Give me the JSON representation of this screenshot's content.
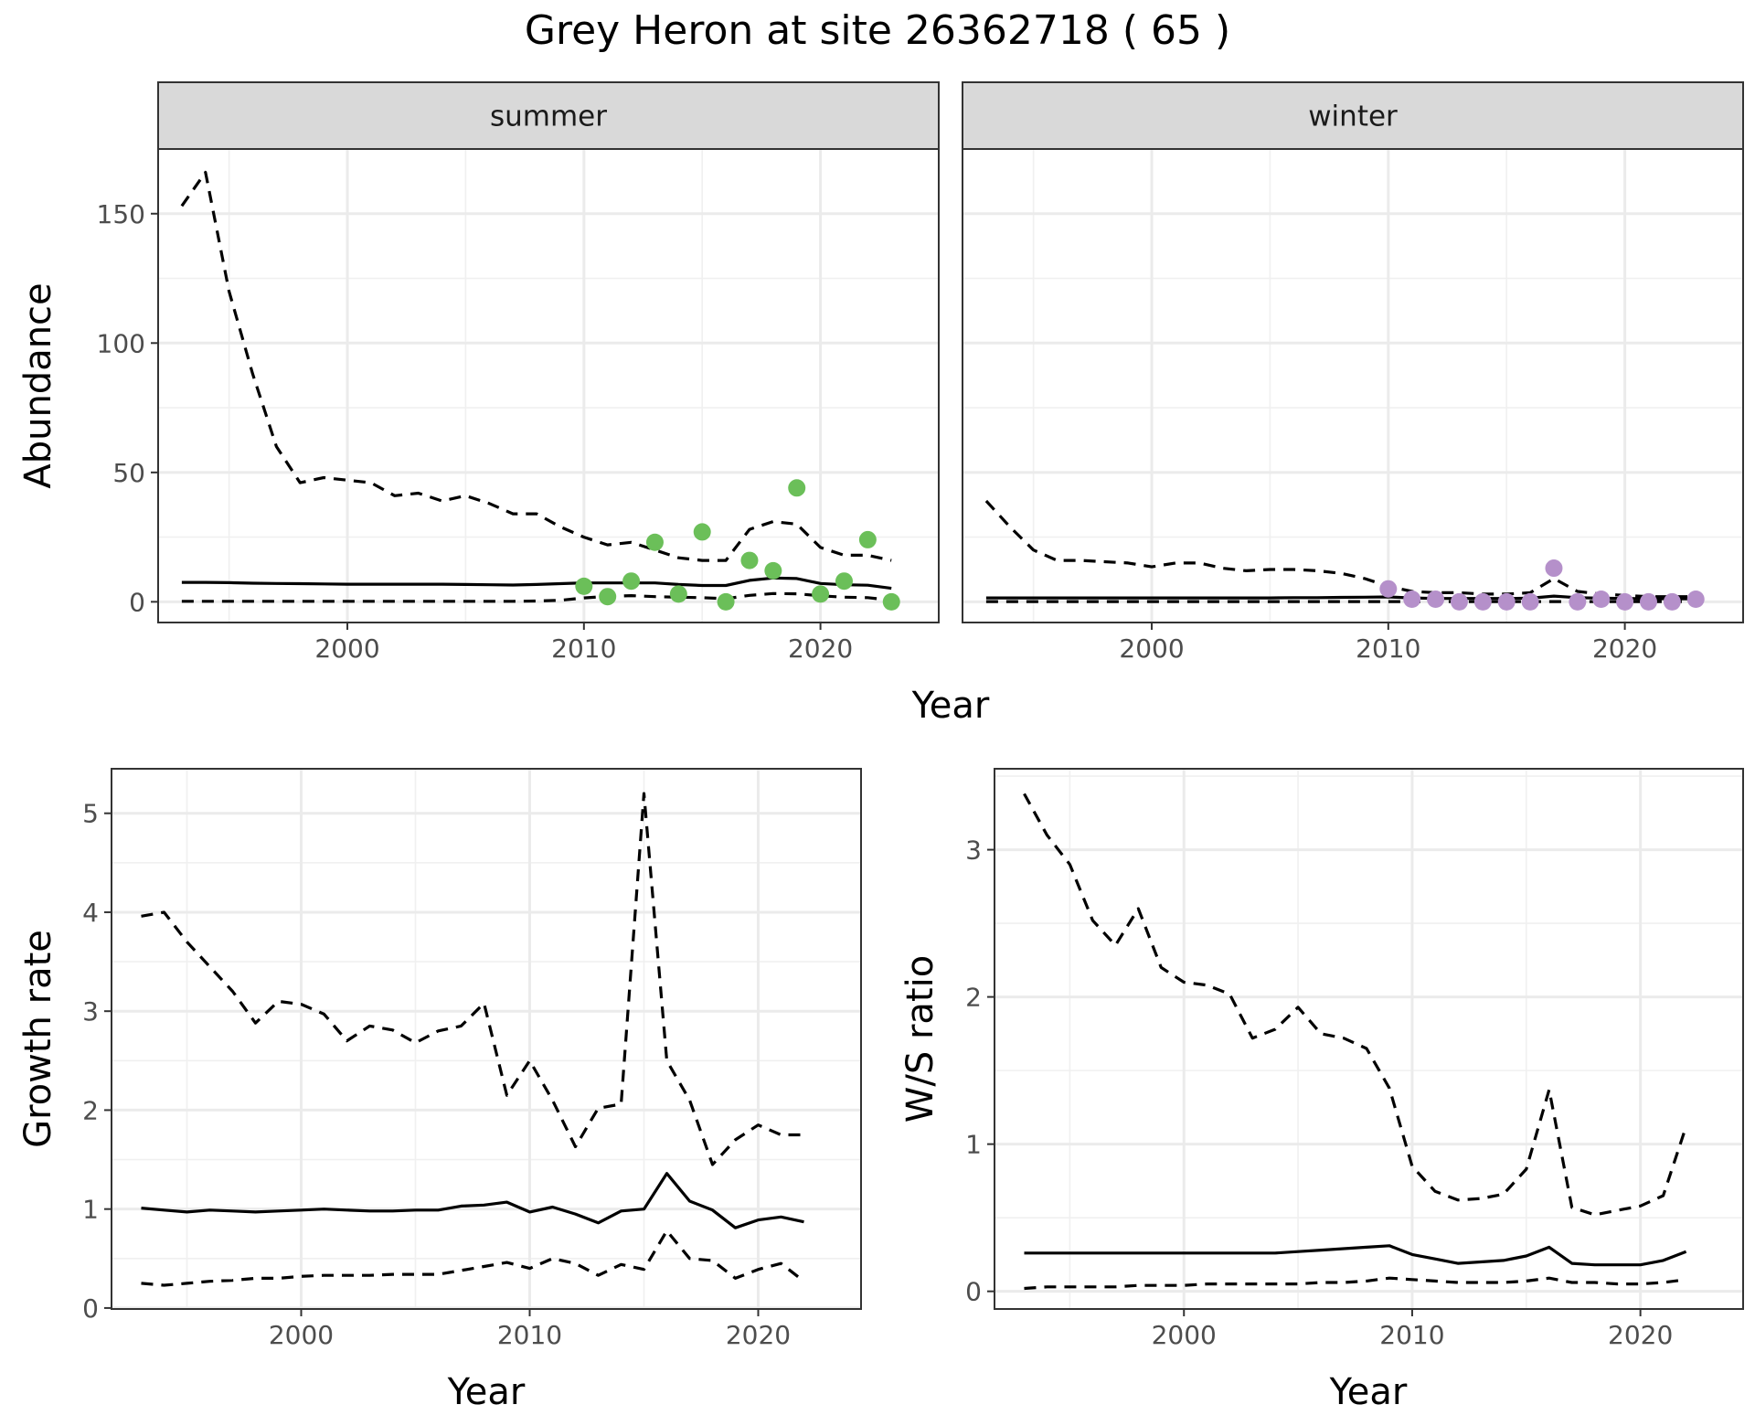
{
  "title": "Grey Heron at site 26362718 ( 65 )",
  "colors": {
    "summer_points": "#6bbf59",
    "winter_points": "#b590ca",
    "lines": "#000000"
  },
  "chart_data": [
    {
      "type": "line",
      "panel": "summer",
      "xlabel": "Year",
      "ylabel": "Abundance",
      "xlim": [
        1992,
        2025
      ],
      "ylim": [
        -8,
        175
      ],
      "xticks": [
        2000,
        2010,
        2020
      ],
      "yticks": [
        0,
        50,
        100,
        150
      ],
      "x": [
        1993,
        1994,
        1995,
        1996,
        1997,
        1998,
        1999,
        2000,
        2001,
        2002,
        2003,
        2004,
        2005,
        2006,
        2007,
        2008,
        2009,
        2010,
        2011,
        2012,
        2013,
        2014,
        2015,
        2016,
        2017,
        2018,
        2019,
        2020,
        2021,
        2022,
        2023
      ],
      "series": [
        {
          "role": "estimate",
          "style": "solid",
          "values": [
            7.5,
            7.5,
            7.4,
            7.2,
            7.1,
            7.0,
            6.9,
            6.8,
            6.8,
            6.8,
            6.8,
            6.8,
            6.7,
            6.6,
            6.5,
            6.7,
            7.0,
            7.3,
            7.3,
            7.3,
            7.3,
            6.7,
            6.3,
            6.3,
            8.3,
            9.2,
            9.0,
            7.1,
            6.6,
            6.4,
            5.2
          ]
        },
        {
          "role": "upper",
          "style": "dashed",
          "values": [
            153,
            166,
            120,
            88,
            60,
            46,
            48,
            47,
            46,
            41,
            42,
            39,
            41,
            38,
            34,
            34,
            29,
            25,
            22,
            23,
            20,
            17,
            16,
            16,
            28,
            31,
            30,
            21,
            18,
            18,
            16
          ]
        },
        {
          "role": "lower",
          "style": "dashed",
          "values": [
            0.2,
            0.2,
            0.2,
            0.2,
            0.2,
            0.2,
            0.2,
            0.2,
            0.2,
            0.2,
            0.2,
            0.2,
            0.2,
            0.2,
            0.2,
            0.3,
            0.6,
            1.5,
            2.1,
            2.4,
            2.0,
            1.8,
            1.6,
            1.2,
            2.5,
            3.2,
            3.1,
            2.3,
            1.8,
            1.6,
            0.6
          ]
        }
      ],
      "points": {
        "x": [
          2010,
          2011,
          2012,
          2013,
          2014,
          2015,
          2016,
          2017,
          2018,
          2019,
          2020,
          2021,
          2022,
          2023
        ],
        "y": [
          6,
          2,
          8,
          23,
          3,
          27,
          0,
          16,
          12,
          44,
          3,
          8,
          24,
          0
        ]
      }
    },
    {
      "type": "line",
      "panel": "winter",
      "xlabel": "Year",
      "ylabel": "Abundance",
      "xlim": [
        1992,
        2025
      ],
      "ylim": [
        -8,
        175
      ],
      "xticks": [
        2000,
        2010,
        2020
      ],
      "yticks": [
        0,
        50,
        100,
        150
      ],
      "x": [
        1993,
        1994,
        1995,
        1996,
        1997,
        1998,
        1999,
        2000,
        2001,
        2002,
        2003,
        2004,
        2005,
        2006,
        2007,
        2008,
        2009,
        2010,
        2011,
        2012,
        2013,
        2014,
        2015,
        2016,
        2017,
        2018,
        2019,
        2020,
        2021,
        2022,
        2023
      ],
      "series": [
        {
          "role": "estimate",
          "style": "solid",
          "values": [
            1.5,
            1.5,
            1.5,
            1.5,
            1.5,
            1.5,
            1.5,
            1.5,
            1.5,
            1.5,
            1.5,
            1.5,
            1.5,
            1.6,
            1.6,
            1.7,
            1.8,
            1.9,
            1.5,
            1.3,
            1.3,
            1.3,
            1.3,
            1.4,
            2.2,
            1.6,
            1.4,
            1.3,
            1.2,
            1.2,
            1.1
          ]
        },
        {
          "role": "upper",
          "style": "dashed",
          "values": [
            39,
            29,
            20,
            16,
            16,
            15.5,
            15,
            13.5,
            15,
            15,
            13,
            12,
            12.5,
            12.5,
            12,
            11,
            9,
            6,
            4,
            3.5,
            3.5,
            3,
            3,
            3.5,
            9,
            4,
            3,
            2.5,
            2,
            2,
            2
          ]
        },
        {
          "role": "lower",
          "style": "dashed",
          "values": [
            0.1,
            0.1,
            0.1,
            0.1,
            0.1,
            0.1,
            0.1,
            0.1,
            0.1,
            0.1,
            0.1,
            0.1,
            0.1,
            0.1,
            0.1,
            0.1,
            0.1,
            0.1,
            0.1,
            0.1,
            0.1,
            0.1,
            0.1,
            0.1,
            0.1,
            0.1,
            0.1,
            0.1,
            0.1,
            0.1,
            0.1
          ]
        }
      ],
      "points": {
        "x": [
          2010,
          2011,
          2012,
          2013,
          2014,
          2015,
          2016,
          2017,
          2018,
          2019,
          2020,
          2021,
          2022,
          2023
        ],
        "y": [
          5,
          1,
          1,
          0,
          0,
          0,
          0,
          13,
          0,
          1,
          0,
          0,
          0,
          1
        ]
      }
    },
    {
      "type": "line",
      "panel": "growth",
      "xlabel": "Year",
      "ylabel": "Growth rate",
      "xlim": [
        1991.7,
        2024.5
      ],
      "ylim": [
        -0.01,
        5.45
      ],
      "xticks": [
        2000,
        2010,
        2020
      ],
      "yticks": [
        0,
        1,
        2,
        3,
        4,
        5
      ],
      "x": [
        1993,
        1994,
        1995,
        1996,
        1997,
        1998,
        1999,
        2000,
        2001,
        2002,
        2003,
        2004,
        2005,
        2006,
        2007,
        2008,
        2009,
        2010,
        2011,
        2012,
        2013,
        2014,
        2015,
        2016,
        2017,
        2018,
        2019,
        2020,
        2021,
        2022
      ],
      "series": [
        {
          "role": "estimate",
          "style": "solid",
          "values": [
            1.01,
            0.99,
            0.97,
            0.99,
            0.98,
            0.97,
            0.98,
            0.99,
            1.0,
            0.99,
            0.98,
            0.98,
            0.99,
            0.99,
            1.03,
            1.04,
            1.07,
            0.97,
            1.02,
            0.95,
            0.86,
            0.98,
            1.0,
            1.36,
            1.08,
            0.99,
            0.81,
            0.89,
            0.92,
            0.87
          ]
        },
        {
          "role": "upper",
          "style": "dashed",
          "values": [
            3.96,
            4.0,
            3.7,
            3.45,
            3.2,
            2.88,
            3.1,
            3.07,
            2.97,
            2.7,
            2.85,
            2.81,
            2.68,
            2.8,
            2.85,
            3.08,
            2.15,
            2.5,
            2.1,
            1.63,
            2.02,
            2.06,
            5.2,
            2.5,
            2.1,
            1.45,
            1.7,
            1.85,
            1.75,
            1.75
          ]
        },
        {
          "role": "lower",
          "style": "dashed",
          "values": [
            0.25,
            0.23,
            0.25,
            0.27,
            0.28,
            0.3,
            0.3,
            0.32,
            0.33,
            0.33,
            0.33,
            0.34,
            0.34,
            0.34,
            0.38,
            0.42,
            0.46,
            0.4,
            0.5,
            0.45,
            0.33,
            0.44,
            0.39,
            0.78,
            0.5,
            0.48,
            0.3,
            0.39,
            0.45,
            0.27
          ]
        }
      ]
    },
    {
      "type": "line",
      "panel": "ratio",
      "xlabel": "Year",
      "ylabel": "W/S ratio",
      "xlim": [
        1991.7,
        2024.5
      ],
      "ylim": [
        -0.12,
        3.55
      ],
      "xticks": [
        2000,
        2010,
        2020
      ],
      "yticks": [
        0,
        1,
        2,
        3
      ],
      "x": [
        1993,
        1994,
        1995,
        1996,
        1997,
        1998,
        1999,
        2000,
        2001,
        2002,
        2003,
        2004,
        2005,
        2006,
        2007,
        2008,
        2009,
        2010,
        2011,
        2012,
        2013,
        2014,
        2015,
        2016,
        2017,
        2018,
        2019,
        2020,
        2021,
        2022
      ],
      "series": [
        {
          "role": "estimate",
          "style": "solid",
          "values": [
            0.26,
            0.26,
            0.26,
            0.26,
            0.26,
            0.26,
            0.26,
            0.26,
            0.26,
            0.26,
            0.26,
            0.26,
            0.27,
            0.28,
            0.29,
            0.3,
            0.31,
            0.25,
            0.22,
            0.19,
            0.2,
            0.21,
            0.24,
            0.3,
            0.19,
            0.18,
            0.18,
            0.18,
            0.21,
            0.27
          ]
        },
        {
          "role": "upper",
          "style": "dashed",
          "values": [
            3.38,
            3.1,
            2.9,
            2.52,
            2.35,
            2.6,
            2.2,
            2.1,
            2.08,
            2.02,
            1.72,
            1.78,
            1.93,
            1.75,
            1.72,
            1.65,
            1.38,
            0.85,
            0.68,
            0.62,
            0.63,
            0.66,
            0.83,
            1.37,
            0.57,
            0.52,
            0.55,
            0.58,
            0.65,
            1.12
          ]
        },
        {
          "role": "lower",
          "style": "dashed",
          "values": [
            0.02,
            0.03,
            0.03,
            0.03,
            0.03,
            0.04,
            0.04,
            0.04,
            0.05,
            0.05,
            0.05,
            0.05,
            0.05,
            0.06,
            0.06,
            0.07,
            0.09,
            0.08,
            0.07,
            0.06,
            0.06,
            0.06,
            0.07,
            0.09,
            0.06,
            0.06,
            0.05,
            0.05,
            0.06,
            0.08
          ]
        }
      ]
    }
  ]
}
